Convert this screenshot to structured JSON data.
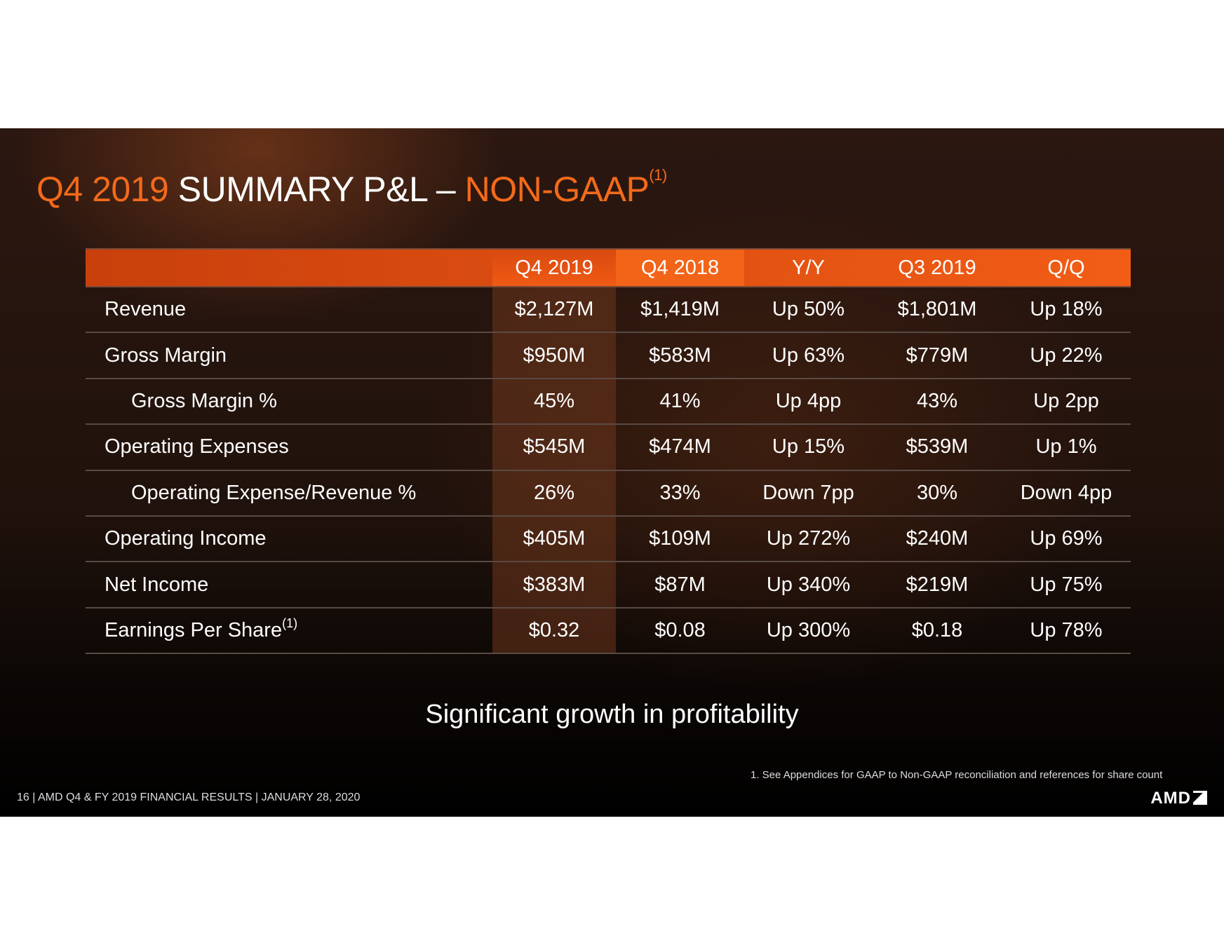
{
  "title": {
    "part1": "Q4 2019",
    "part2": "SUMMARY P&L –",
    "part3": "NON-GAAP",
    "sup": "(1)"
  },
  "table": {
    "headers": [
      "",
      "Q4 2019",
      "Q4 2018",
      "Y/Y",
      "Q3 2019",
      "Q/Q"
    ],
    "rows": [
      {
        "label": "Revenue",
        "sup": "",
        "indent": false,
        "values": [
          "$2,127M",
          "$1,419M",
          "Up 50%",
          "$1,801M",
          "Up 18%"
        ]
      },
      {
        "label": "Gross Margin",
        "sup": "",
        "indent": false,
        "values": [
          "$950M",
          "$583M",
          "Up 63%",
          "$779M",
          "Up 22%"
        ]
      },
      {
        "label": "Gross Margin %",
        "sup": "",
        "indent": true,
        "values": [
          "45%",
          "41%",
          "Up 4pp",
          "43%",
          "Up 2pp"
        ]
      },
      {
        "label": "Operating Expenses",
        "sup": "",
        "indent": false,
        "values": [
          "$545M",
          "$474M",
          "Up 15%",
          "$539M",
          "Up 1%"
        ]
      },
      {
        "label": "Operating Expense/Revenue %",
        "sup": "",
        "indent": true,
        "values": [
          "26%",
          "33%",
          "Down 7pp",
          "30%",
          "Down 4pp"
        ]
      },
      {
        "label": "Operating Income",
        "sup": "",
        "indent": false,
        "values": [
          "$405M",
          "$109M",
          "Up 272%",
          "$240M",
          "Up 69%"
        ]
      },
      {
        "label": "Net Income",
        "sup": "",
        "indent": false,
        "values": [
          "$383M",
          "$87M",
          "Up 340%",
          "$219M",
          "Up 75%"
        ]
      },
      {
        "label": "Earnings Per Share",
        "sup": "(1)",
        "indent": false,
        "values": [
          "$0.32",
          "$0.08",
          "Up 300%",
          "$0.18",
          "Up 78%"
        ]
      }
    ]
  },
  "tagline": "Significant growth in profitability",
  "footnote": "1.   See Appendices for GAAP to Non-GAAP reconciliation and references for share count",
  "footer": "16  |  AMD Q4 & FY 2019 FINANCIAL RESULTS  |  JANUARY 28, 2020",
  "logo": "AMD◪",
  "colors": {
    "accent": "#f26a1b"
  }
}
